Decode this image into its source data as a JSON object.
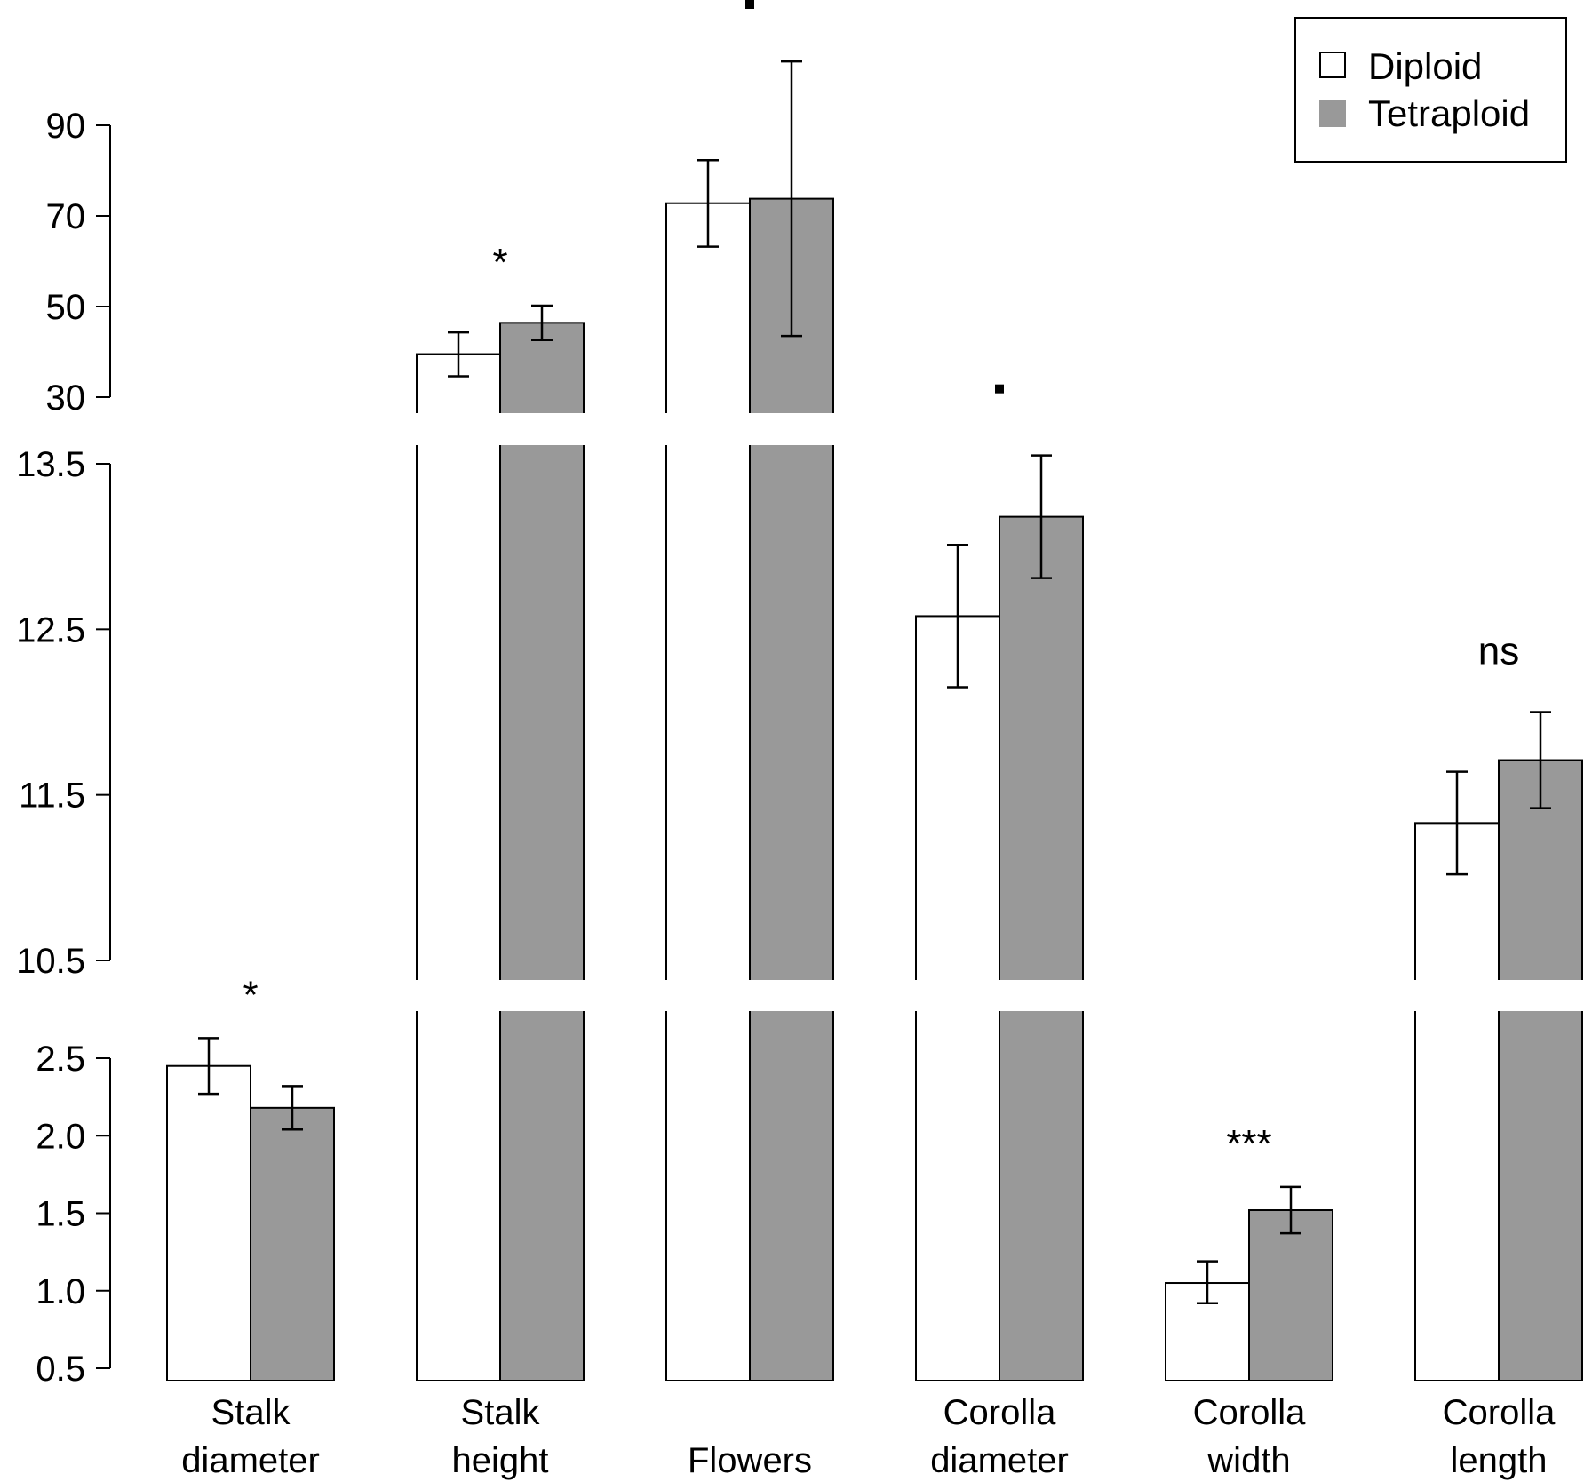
{
  "chart_data": {
    "type": "bar",
    "broken_axis": true,
    "legend": {
      "position": "top-right",
      "entries": [
        {
          "name": "Diploid",
          "color": "#ffffff"
        },
        {
          "name": "Tetraploid",
          "color": "#999999"
        }
      ]
    },
    "categories": [
      {
        "label_lines": [
          "Stalk",
          "diameter"
        ],
        "panel": "bottom",
        "diploid": {
          "value": 2.45,
          "err_low": 2.27,
          "err_high": 2.63
        },
        "tetraploid": {
          "value": 2.18,
          "err_low": 2.04,
          "err_high": 2.32
        },
        "significance": "*"
      },
      {
        "label_lines": [
          "Stalk",
          "height"
        ],
        "panel": "top",
        "diploid": {
          "value": 39.5,
          "err_low": 34.6,
          "err_high": 44.3
        },
        "tetraploid": {
          "value": 46.4,
          "err_low": 42.6,
          "err_high": 50.2
        },
        "significance": "*"
      },
      {
        "label_lines": [
          "Flowers"
        ],
        "panel": "top",
        "diploid": {
          "value": 72.8,
          "err_low": 63.2,
          "err_high": 82.3
        },
        "tetraploid": {
          "value": 73.8,
          "err_low": 43.5,
          "err_high": 104.1
        },
        "significance": "·"
      },
      {
        "label_lines": [
          "Corolla",
          "diameter"
        ],
        "panel": "middle",
        "diploid": {
          "value": 12.58,
          "err_low": 12.15,
          "err_high": 13.01
        },
        "tetraploid": {
          "value": 13.18,
          "err_low": 12.81,
          "err_high": 13.55
        },
        "significance": "·"
      },
      {
        "label_lines": [
          "Corolla",
          "width"
        ],
        "panel": "bottom",
        "diploid": {
          "value": 1.05,
          "err_low": 0.92,
          "err_high": 1.19
        },
        "tetraploid": {
          "value": 1.52,
          "err_low": 1.37,
          "err_high": 1.67
        },
        "significance": "***"
      },
      {
        "label_lines": [
          "Corolla",
          "length"
        ],
        "panel": "middle",
        "diploid": {
          "value": 11.33,
          "err_low": 11.02,
          "err_high": 11.64
        },
        "tetraploid": {
          "value": 11.71,
          "err_low": 11.42,
          "err_high": 12.0
        },
        "significance": "ns"
      }
    ],
    "y_axes": {
      "top": {
        "ylim": [
          30,
          90
        ],
        "ticks": [
          "30",
          "50",
          "70",
          "90"
        ]
      },
      "middle": {
        "ylim": [
          10.5,
          13.5
        ],
        "ticks": [
          "10.5",
          "11.5",
          "12.5",
          "13.5"
        ]
      },
      "bottom": {
        "ylim": [
          0.5,
          2.5
        ],
        "ticks": [
          "0.5",
          "1.0",
          "1.5",
          "2.0",
          "2.5"
        ]
      }
    },
    "grid": false
  }
}
